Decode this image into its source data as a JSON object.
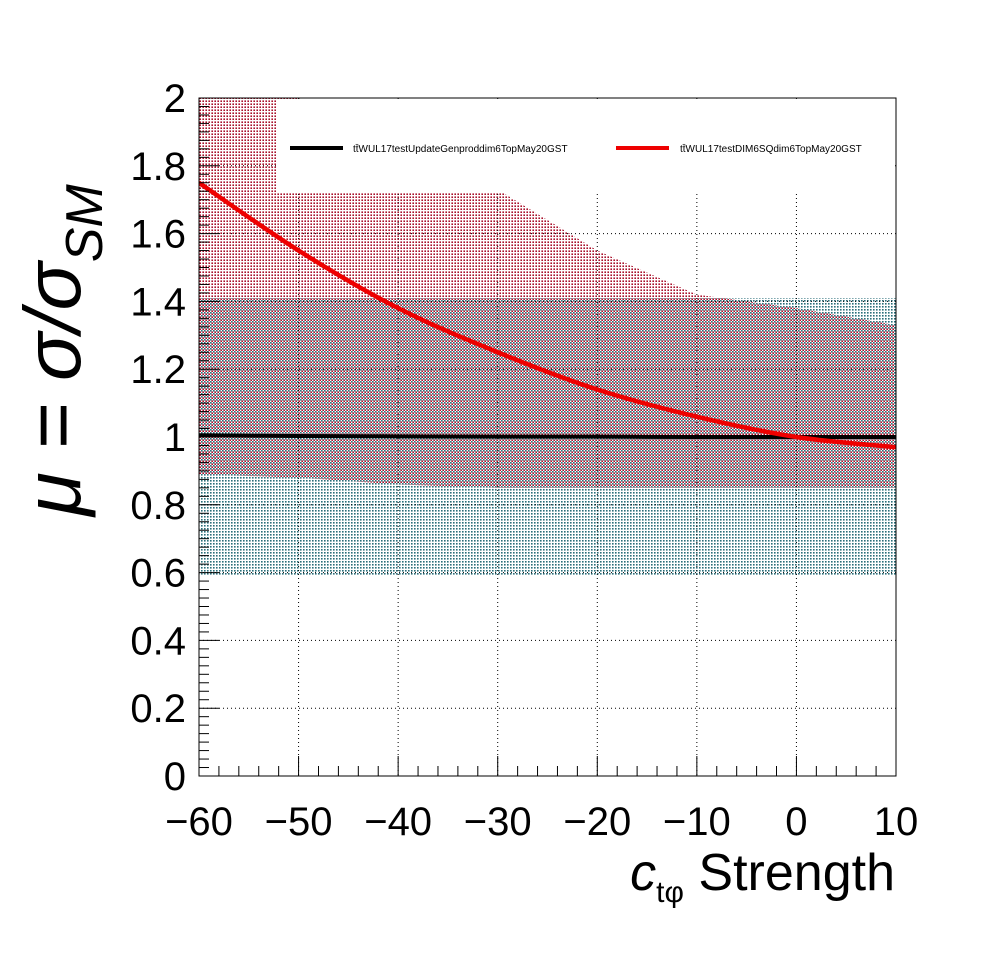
{
  "chart_data": {
    "type": "line",
    "title": "",
    "xlabel": {
      "symbol": "c",
      "subscript": "tφ",
      "rest": " Strength"
    },
    "ylabel": {
      "lhs": "μ = σ/σ",
      "subscript": "SM"
    },
    "xlim": [
      -60,
      10
    ],
    "ylim": [
      0,
      2
    ],
    "x_ticks": [
      -60,
      -50,
      -40,
      -30,
      -20,
      -10,
      0,
      10
    ],
    "x_tick_labels": [
      "−60",
      "−50",
      "−40",
      "−30",
      "−20",
      "−10",
      "0",
      "10"
    ],
    "y_ticks": [
      0,
      0.2,
      0.4,
      0.6,
      0.8,
      1,
      1.2,
      1.4,
      1.6,
      1.8,
      2
    ],
    "y_tick_labels": [
      "0",
      "0.2",
      "0.4",
      "0.6",
      "0.8",
      "1",
      "1.2",
      "1.4",
      "1.6",
      "1.8",
      "2"
    ],
    "grid": true,
    "legend_position": "top",
    "series": [
      {
        "name": "tt̄WUL17testUpdateGenproddim6TopMay20GST",
        "color": "#000000",
        "band_color": "#2a6f7a",
        "x": [
          -60,
          -50,
          -40,
          -30,
          -20,
          -10,
          0,
          10
        ],
        "values": [
          1.005,
          1.003,
          1.002,
          1.001,
          1.001,
          1.0,
          1.0,
          1.0
        ],
        "band_lower": [
          0.59,
          0.59,
          0.59,
          0.59,
          0.59,
          0.59,
          0.59,
          0.59
        ],
        "band_upper": [
          1.41,
          1.41,
          1.41,
          1.41,
          1.41,
          1.41,
          1.41,
          1.41
        ]
      },
      {
        "name": "tt̄WUL17testDIM6SQdim6TopMay20GST",
        "color": "#ee0000",
        "band_color": "#a8102a",
        "x": [
          -60,
          -50,
          -40,
          -30,
          -20,
          -10,
          0,
          10
        ],
        "values": [
          1.75,
          1.55,
          1.38,
          1.25,
          1.14,
          1.06,
          1.0,
          0.97
        ],
        "band_lower": [
          0.89,
          0.88,
          0.86,
          0.85,
          0.85,
          0.85,
          0.85,
          0.85
        ],
        "band_upper": [
          2.0,
          2.0,
          1.75,
          1.73,
          1.55,
          1.42,
          1.38,
          1.33
        ]
      }
    ]
  }
}
